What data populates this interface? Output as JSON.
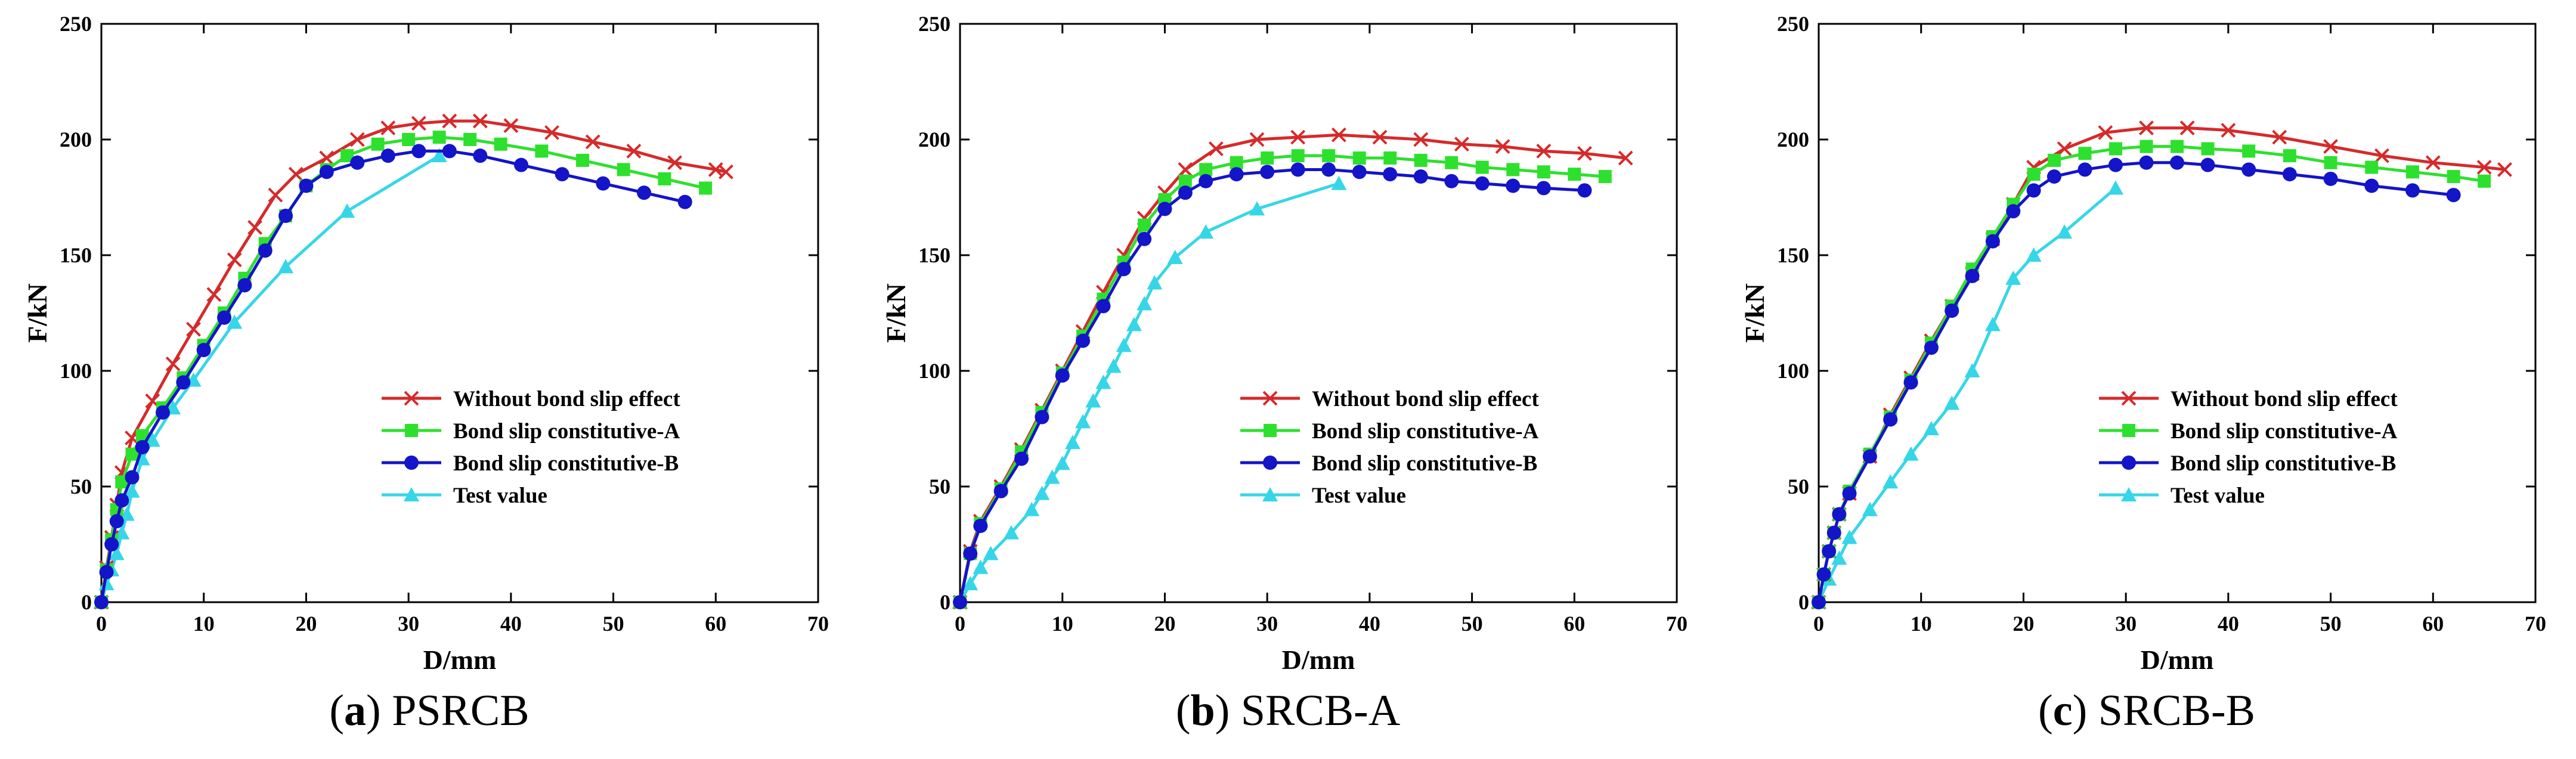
{
  "figure": {
    "panels": [
      {
        "caption_letter": "a",
        "caption_text": "PSRCB"
      },
      {
        "caption_letter": "b",
        "caption_text": "SRCB-A"
      },
      {
        "caption_letter": "c",
        "caption_text": "SRCB-B"
      }
    ]
  },
  "chart_data": [
    {
      "type": "line",
      "title": "(a) PSRCB",
      "xlabel": "D/mm",
      "ylabel": "F/kN",
      "xlim": [
        0,
        70
      ],
      "ylim": [
        0,
        250
      ],
      "xticks": [
        0,
        10,
        20,
        30,
        40,
        50,
        60,
        70
      ],
      "yticks": [
        0,
        50,
        100,
        150,
        200,
        250
      ],
      "legend_position": "lower-right",
      "series": [
        {
          "name": "Without bond slip effect",
          "color": "#d62a2a",
          "marker": "x",
          "x": [
            0,
            0.5,
            1,
            1.5,
            2,
            3,
            5,
            7,
            9,
            11,
            13,
            15,
            17,
            19,
            22,
            25,
            28,
            31,
            34,
            37,
            40,
            44,
            48,
            52,
            56,
            60,
            61
          ],
          "y": [
            0,
            15,
            28,
            42,
            56,
            71,
            87,
            103,
            118,
            133,
            148,
            162,
            176,
            185,
            192,
            200,
            205,
            207,
            208,
            208,
            206,
            203,
            199,
            195,
            190,
            187,
            186
          ]
        },
        {
          "name": "Bond slip constitutive-A",
          "color": "#2ee02e",
          "marker": "square",
          "x": [
            0,
            0.5,
            1,
            1.5,
            2,
            3,
            4,
            6,
            8,
            10,
            12,
            14,
            16,
            18,
            20,
            22,
            24,
            27,
            30,
            33,
            36,
            39,
            43,
            47,
            51,
            55,
            59
          ],
          "y": [
            0,
            14,
            27,
            40,
            52,
            64,
            72,
            84,
            97,
            111,
            125,
            140,
            155,
            167,
            180,
            187,
            193,
            198,
            200,
            201,
            200,
            198,
            195,
            191,
            187,
            183,
            179
          ]
        },
        {
          "name": "Bond slip constitutive-B",
          "color": "#1414c8",
          "marker": "circle",
          "x": [
            0,
            0.5,
            1,
            1.5,
            2,
            3,
            4,
            6,
            8,
            10,
            12,
            14,
            16,
            18,
            20,
            22,
            25,
            28,
            31,
            34,
            37,
            41,
            45,
            49,
            53,
            57
          ],
          "y": [
            0,
            13,
            25,
            35,
            44,
            54,
            67,
            82,
            95,
            109,
            123,
            137,
            152,
            167,
            180,
            186,
            190,
            193,
            195,
            195,
            193,
            189,
            185,
            181,
            177,
            173
          ]
        },
        {
          "name": "Test value",
          "color": "#36d6e8",
          "marker": "triangle",
          "x": [
            0,
            0.5,
            1,
            1.5,
            2,
            2.5,
            3,
            4,
            5,
            7,
            9,
            13,
            18,
            24,
            33
          ],
          "y": [
            0,
            8,
            14,
            21,
            30,
            38,
            48,
            62,
            70,
            84,
            96,
            121,
            145,
            169,
            193
          ]
        }
      ]
    },
    {
      "type": "line",
      "title": "(b) SRCB-A",
      "xlabel": "D/mm",
      "ylabel": "F/kN",
      "xlim": [
        0,
        70
      ],
      "ylim": [
        0,
        250
      ],
      "xticks": [
        0,
        10,
        20,
        30,
        40,
        50,
        60,
        70
      ],
      "yticks": [
        0,
        50,
        100,
        150,
        200,
        250
      ],
      "legend_position": "lower-right",
      "series": [
        {
          "name": "Without bond slip effect",
          "color": "#d62a2a",
          "marker": "x",
          "x": [
            0,
            1,
            2,
            4,
            6,
            8,
            10,
            12,
            14,
            16,
            18,
            20,
            22,
            25,
            29,
            33,
            37,
            41,
            45,
            49,
            53,
            57,
            61,
            65
          ],
          "y": [
            0,
            22,
            35,
            50,
            66,
            83,
            100,
            117,
            134,
            150,
            166,
            177,
            187,
            196,
            200,
            201,
            202,
            201,
            200,
            198,
            197,
            195,
            194,
            192
          ]
        },
        {
          "name": "Bond slip constitutive-A",
          "color": "#2ee02e",
          "marker": "square",
          "x": [
            0,
            1,
            2,
            4,
            6,
            8,
            10,
            12,
            14,
            16,
            18,
            20,
            22,
            24,
            27,
            30,
            33,
            36,
            39,
            42,
            45,
            48,
            51,
            54,
            57,
            60,
            63
          ],
          "y": [
            0,
            21,
            34,
            49,
            65,
            82,
            99,
            115,
            131,
            147,
            163,
            174,
            182,
            187,
            190,
            192,
            193,
            193,
            192,
            192,
            191,
            190,
            188,
            187,
            186,
            185,
            184
          ]
        },
        {
          "name": "Bond slip constitutive-B",
          "color": "#1414c8",
          "marker": "circle",
          "x": [
            0,
            1,
            2,
            4,
            6,
            8,
            10,
            12,
            14,
            16,
            18,
            20,
            22,
            24,
            27,
            30,
            33,
            36,
            39,
            42,
            45,
            48,
            51,
            54,
            57,
            61
          ],
          "y": [
            0,
            21,
            33,
            48,
            62,
            80,
            98,
            113,
            128,
            144,
            157,
            170,
            177,
            182,
            185,
            186,
            187,
            187,
            186,
            185,
            184,
            182,
            181,
            180,
            179,
            178
          ]
        },
        {
          "name": "Test value",
          "color": "#36d6e8",
          "marker": "triangle",
          "x": [
            0,
            1,
            2,
            3,
            5,
            7,
            8,
            9,
            10,
            11,
            12,
            13,
            14,
            15,
            16,
            17,
            18,
            19,
            21,
            24,
            29,
            37
          ],
          "y": [
            0,
            8,
            15,
            21,
            30,
            40,
            47,
            54,
            60,
            69,
            78,
            87,
            95,
            102,
            111,
            120,
            129,
            138,
            149,
            160,
            170,
            181
          ]
        }
      ]
    },
    {
      "type": "line",
      "title": "(c) SRCB-B",
      "xlabel": "D/mm",
      "ylabel": "F/kN",
      "xlim": [
        0,
        70
      ],
      "ylim": [
        0,
        250
      ],
      "xticks": [
        0,
        10,
        20,
        30,
        40,
        50,
        60,
        70
      ],
      "yticks": [
        0,
        50,
        100,
        150,
        200,
        250
      ],
      "legend_position": "lower-right",
      "series": [
        {
          "name": "Without bond slip effect",
          "color": "#d62a2a",
          "marker": "x",
          "x": [
            0,
            0.5,
            1,
            1.5,
            2,
            3,
            5,
            7,
            9,
            11,
            13,
            15,
            17,
            19,
            21,
            24,
            28,
            32,
            36,
            40,
            45,
            50,
            55,
            60,
            65,
            67
          ],
          "y": [
            0,
            12,
            22,
            30,
            38,
            47,
            63,
            81,
            97,
            113,
            128,
            142,
            157,
            172,
            188,
            196,
            203,
            205,
            205,
            204,
            201,
            197,
            193,
            190,
            188,
            187
          ]
        },
        {
          "name": "Bond slip constitutive-A",
          "color": "#2ee02e",
          "marker": "square",
          "x": [
            0,
            0.5,
            1,
            1.5,
            2,
            3,
            5,
            7,
            9,
            11,
            13,
            15,
            17,
            19,
            21,
            23,
            26,
            29,
            32,
            35,
            38,
            42,
            46,
            50,
            54,
            58,
            62,
            65
          ],
          "y": [
            0,
            12,
            22,
            30,
            38,
            48,
            64,
            80,
            96,
            112,
            128,
            144,
            158,
            172,
            185,
            191,
            194,
            196,
            197,
            197,
            196,
            195,
            193,
            190,
            188,
            186,
            184,
            182
          ]
        },
        {
          "name": "Bond slip constitutive-B",
          "color": "#1414c8",
          "marker": "circle",
          "x": [
            0,
            0.5,
            1,
            1.5,
            2,
            3,
            5,
            7,
            9,
            11,
            13,
            15,
            17,
            19,
            21,
            23,
            26,
            29,
            32,
            35,
            38,
            42,
            46,
            50,
            54,
            58,
            62
          ],
          "y": [
            0,
            12,
            22,
            30,
            38,
            47,
            63,
            79,
            95,
            110,
            126,
            141,
            156,
            169,
            178,
            184,
            187,
            189,
            190,
            190,
            189,
            187,
            185,
            183,
            180,
            178,
            176
          ]
        },
        {
          "name": "Test value",
          "color": "#36d6e8",
          "marker": "triangle",
          "x": [
            0,
            1,
            2,
            3,
            5,
            7,
            9,
            11,
            13,
            15,
            17,
            19,
            21,
            24,
            29
          ],
          "y": [
            0,
            10,
            19,
            28,
            40,
            52,
            64,
            75,
            86,
            100,
            120,
            140,
            150,
            160,
            179
          ]
        }
      ]
    }
  ]
}
